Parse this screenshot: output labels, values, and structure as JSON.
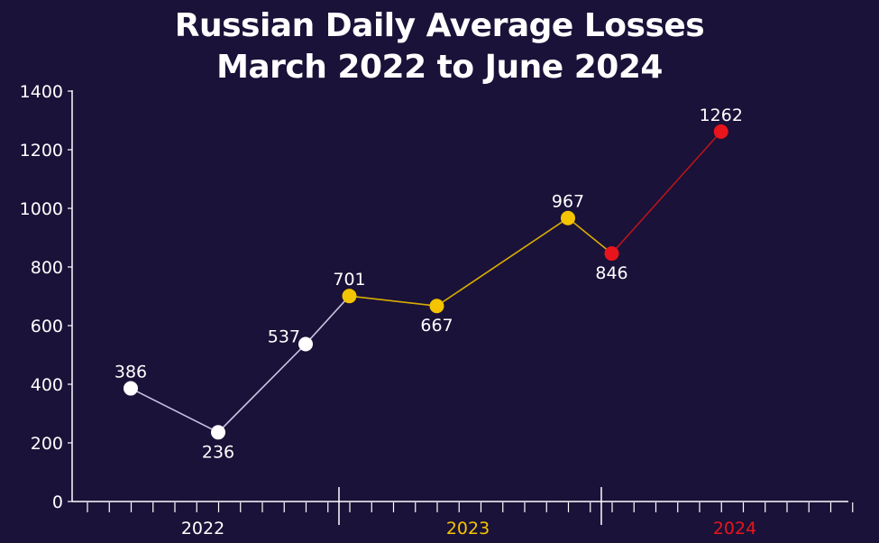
{
  "chart_data": {
    "type": "line",
    "title_line1": "Russian Daily Average Losses",
    "title_line2": "March 2022 to June 2024",
    "xlabel": "",
    "ylabel": "",
    "ylim": [
      0,
      1400
    ],
    "yticks": [
      "0",
      "200",
      "400",
      "600",
      "800",
      "1000",
      "1200",
      "1400"
    ],
    "grid": false,
    "years": [
      {
        "label": "2022",
        "color": "#ffffff"
      },
      {
        "label": "2023",
        "color": "#f5c400"
      },
      {
        "label": "2024",
        "color": "#e8151d"
      }
    ],
    "points": [
      {
        "x": "Mar 2022",
        "y": 386,
        "label": "386",
        "color": "#ffffff"
      },
      {
        "x": "Jul 2022",
        "y": 236,
        "label": "236",
        "color": "#ffffff"
      },
      {
        "x": "Nov 2022",
        "y": 537,
        "label": "537",
        "color": "#ffffff"
      },
      {
        "x": "Jan 2023",
        "y": 701,
        "label": "701",
        "color": "#f5c400"
      },
      {
        "x": "May 2023",
        "y": 667,
        "label": "667",
        "color": "#f5c400"
      },
      {
        "x": "Nov 2023",
        "y": 967,
        "label": "967",
        "color": "#f5c400"
      },
      {
        "x": "Jan 2024",
        "y": 846,
        "label": "846",
        "color": "#e8151d"
      },
      {
        "x": "Jun 2024",
        "y": 1262,
        "label": "1262",
        "color": "#e8151d"
      }
    ],
    "segment_colors": [
      "#c9c3e0",
      "#c9c3e0",
      "#c9c3e0",
      "#d9ad00",
      "#d9ad00",
      "#d9ad00",
      "#b8141c"
    ]
  }
}
